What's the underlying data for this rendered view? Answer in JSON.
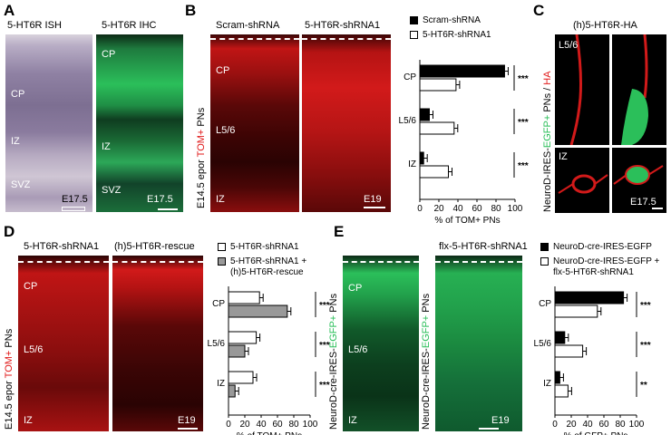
{
  "panels": {
    "A": {
      "label": "A",
      "ish": {
        "title": "5-HT6R ISH",
        "regions": [
          "CP",
          "IZ",
          "SVZ"
        ],
        "age": "E17.5"
      },
      "ihc": {
        "title": "5-HT6R IHC",
        "regions": [
          "CP",
          "IZ",
          "SVZ"
        ],
        "age": "E17.5"
      }
    },
    "B": {
      "label": "B",
      "img1_title": "Scram-shRNA",
      "img2_title": "5-HT6R-shRNA1",
      "side_label": {
        "prefix": "E14.5 epor",
        "colored": "TOM+",
        "suffix": " PNs"
      },
      "regions": [
        "CP",
        "L5/6",
        "IZ"
      ],
      "age": "E19"
    },
    "C": {
      "label": "C",
      "title": "(h)5-HT6R-HA",
      "side_label": {
        "part1": "NeuroD-IRES-",
        "part2": "EGFP+",
        "part3": " PNs / ",
        "part4": "HA"
      },
      "regions": [
        "L5/6",
        "IZ"
      ],
      "age": "E17.5"
    },
    "D": {
      "label": "D",
      "img1_title": "5-HT6R-shRNA1",
      "img2_title": "(h)5-HT6R-rescue",
      "side_label": {
        "prefix": "E14.5 epor",
        "colored": "TOM+",
        "suffix": " PNs"
      },
      "regions": [
        "CP",
        "L5/6",
        "IZ"
      ],
      "age": "E19"
    },
    "E": {
      "label": "E",
      "img2_title": "flx-5-HT6R-shRNA1",
      "side_label": {
        "part1": "NeuroD-cre-IRES-",
        "part2": "EGFP+",
        "part3": " PNs"
      },
      "regions": [
        "CP",
        "L5/6",
        "IZ"
      ],
      "age": "E19"
    }
  },
  "colors": {
    "red_stain": "#e01818",
    "green_stain": "#2bbf5a",
    "ish_purple": "#7a6a8c",
    "gray_bar": "#999999"
  },
  "chart_data": [
    {
      "id": "B",
      "type": "bar",
      "orientation": "horizontal",
      "categories": [
        "CP",
        "L5/6",
        "IZ"
      ],
      "series": [
        {
          "name": "Scram-shRNA",
          "values": [
            89,
            10,
            4
          ],
          "fill": "#000000"
        },
        {
          "name": "5-HT6R-shRNA1",
          "values": [
            38,
            36,
            30
          ],
          "fill": "#ffffff"
        }
      ],
      "xlabel": "% of TOM+ PNs",
      "xlim": [
        0,
        100
      ],
      "xticks": [
        "0",
        "20",
        "40",
        "60",
        "80",
        "100"
      ],
      "significance": [
        "***",
        "***",
        "***"
      ],
      "legend": "top-right"
    },
    {
      "id": "D",
      "type": "bar",
      "orientation": "horizontal",
      "categories": [
        "CP",
        "L5/6",
        "IZ"
      ],
      "series": [
        {
          "name": "5-HT6R-shRNA1",
          "values": [
            38,
            34,
            30
          ],
          "fill": "#ffffff"
        },
        {
          "name": "5-HT6R-shRNA1 + (h)5-HT6R-rescue",
          "values": [
            72,
            20,
            8
          ],
          "fill": "#999999"
        }
      ],
      "legend_lines": [
        [
          "5-HT6R-shRNA1"
        ],
        [
          "5-HT6R-shRNA1 +",
          "(h)5-HT6R-rescue"
        ]
      ],
      "xlabel": "% of TOM+ PNs",
      "xlim": [
        0,
        100
      ],
      "xticks": [
        "0",
        "20",
        "40",
        "60",
        "80",
        "100"
      ],
      "significance": [
        "***",
        "***",
        "***"
      ],
      "legend": "top-right"
    },
    {
      "id": "E",
      "type": "bar",
      "orientation": "horizontal",
      "categories": [
        "CP",
        "L5/6",
        "IZ"
      ],
      "series": [
        {
          "name": "NeuroD-cre-IRES-EGFP",
          "values": [
            84,
            12,
            6
          ],
          "fill": "#000000"
        },
        {
          "name": "NeuroD-cre-IRES-EGFP + flx-5-HT6R-shRNA1",
          "values": [
            52,
            34,
            16
          ],
          "fill": "#ffffff"
        }
      ],
      "legend_lines": [
        [
          "NeuroD-cre-IRES-EGFP"
        ],
        [
          "NeuroD-cre-IRES-EGFP +",
          "flx-5-HT6R-shRNA1"
        ]
      ],
      "xlabel": "% of GFP+ PNs",
      "xlim": [
        0,
        100
      ],
      "xticks": [
        "0",
        "20",
        "40",
        "60",
        "80",
        "100"
      ],
      "significance": [
        "***",
        "***",
        "**"
      ],
      "legend": "top-right"
    }
  ]
}
